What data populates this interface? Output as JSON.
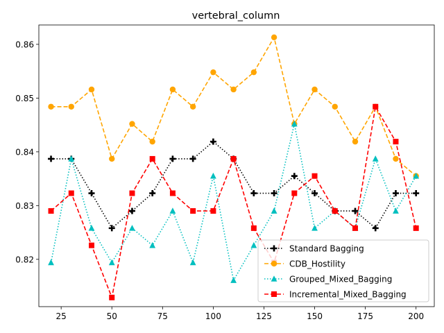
{
  "chart_data": {
    "type": "line",
    "title": "vertebral_column",
    "xlabel": "",
    "ylabel": "",
    "x": [
      20,
      30,
      40,
      50,
      60,
      70,
      80,
      90,
      100,
      110,
      120,
      130,
      140,
      150,
      160,
      170,
      180,
      190,
      200
    ],
    "xlim": [
      14,
      209
    ],
    "ylim": [
      0.8112,
      0.8636
    ],
    "xticks": [
      25,
      50,
      75,
      100,
      125,
      150,
      175,
      200
    ],
    "yticks": [
      0.82,
      0.83,
      0.84,
      0.85,
      0.86
    ],
    "xtick_labels": [
      "25",
      "50",
      "75",
      "100",
      "125",
      "150",
      "175",
      "200"
    ],
    "ytick_labels": [
      "0.82",
      "0.83",
      "0.84",
      "0.85",
      "0.86"
    ],
    "grid": false,
    "legend_position": "lower-right",
    "series": [
      {
        "name": "Standard Bagging",
        "color": "#000000",
        "linestyle": "dotted",
        "marker": "plus",
        "values": [
          0.8387,
          0.8387,
          0.8323,
          0.8258,
          0.829,
          0.8323,
          0.8387,
          0.8387,
          0.8419,
          0.8387,
          0.8323,
          0.8323,
          0.8355,
          0.8323,
          0.829,
          0.829,
          0.8258,
          0.8323,
          0.8323
        ]
      },
      {
        "name": "CDB_Hostility",
        "color": "#ffa500",
        "linestyle": "dashed",
        "marker": "circle",
        "values": [
          0.8484,
          0.8484,
          0.8516,
          0.8387,
          0.8452,
          0.8419,
          0.8516,
          0.8484,
          0.8548,
          0.8516,
          0.8548,
          0.8613,
          0.8452,
          0.8516,
          0.8484,
          0.8419,
          0.8484,
          0.8387,
          0.8355
        ]
      },
      {
        "name": "Grouped_Mixed_Bagging",
        "color": "#00bfbf",
        "linestyle": "dotted",
        "marker": "triangle",
        "values": [
          0.8194,
          0.8387,
          0.8258,
          0.8194,
          0.8258,
          0.8226,
          0.829,
          0.8194,
          0.8355,
          0.8161,
          0.8226,
          0.829,
          0.8452,
          0.8258,
          0.829,
          0.8258,
          0.8387,
          0.829,
          0.8355
        ]
      },
      {
        "name": "Incremental_Mixed_Bagging",
        "color": "#ff0000",
        "linestyle": "dashed",
        "marker": "square",
        "values": [
          0.829,
          0.8323,
          0.8226,
          0.8129,
          0.8323,
          0.8387,
          0.8323,
          0.829,
          0.829,
          0.8387,
          0.8258,
          0.8194,
          0.8323,
          0.8355,
          0.829,
          0.8258,
          0.8484,
          0.8419,
          0.8258
        ]
      }
    ]
  }
}
